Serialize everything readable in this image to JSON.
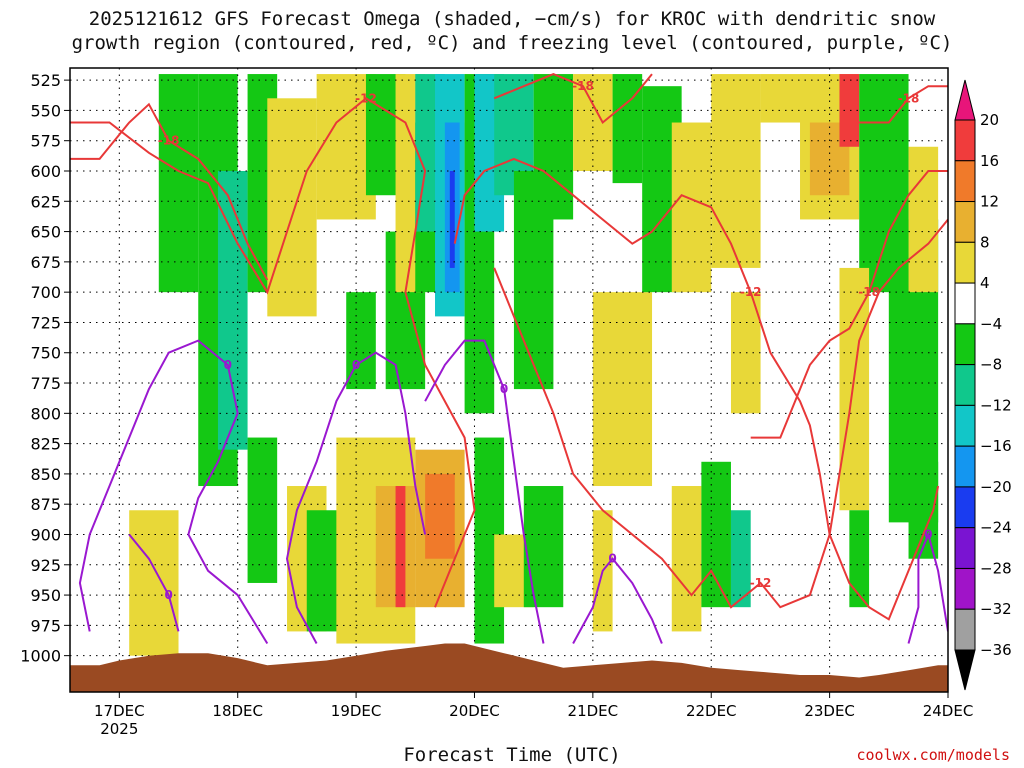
{
  "title_line1": "2025121612 GFS Forecast Omega (shaded, −cm/s) for KROC with dendritic snow",
  "title_line2": "growth region (contoured, red, ºC) and freezing level (contoured, purple, ºC)",
  "xlabel": "Forecast Time (UTC)",
  "credit": "coolwx.com/models",
  "chart_data": {
    "type": "heatmap",
    "title": "2025121612 GFS Forecast Omega (shaded, −cm/s) for KROC with dendritic snow growth region (contoured, red, ºC) and freezing level (contoured, purple, ºC)",
    "xlabel": "Forecast Time (UTC)",
    "ylabel": "",
    "y_axis": {
      "scale": "pressure",
      "ticks": [
        525,
        550,
        575,
        600,
        625,
        650,
        675,
        700,
        725,
        750,
        775,
        800,
        825,
        850,
        875,
        900,
        925,
        950,
        975,
        1000
      ],
      "range": [
        515,
        1030
      ]
    },
    "x_axis": {
      "ticks": [
        "17DEC\n2025",
        "18DEC",
        "19DEC",
        "20DEC",
        "21DEC",
        "22DEC",
        "23DEC",
        "24DEC"
      ],
      "range_hours": [
        -10,
        168
      ]
    },
    "colorbar": {
      "labels": [
        "20",
        "16",
        "12",
        "8",
        "4",
        "−4",
        "−8",
        "−12",
        "−16",
        "−20",
        "−24",
        "−28",
        "−32",
        "−36"
      ],
      "colors": [
        "#e8157a",
        "#f03c3c",
        "#f07a2a",
        "#e8b030",
        "#e8d838",
        "#ffffff",
        "#14c814",
        "#10c88c",
        "#12c6c8",
        "#1496f0",
        "#1a3cf0",
        "#7a14d2",
        "#a014c8",
        "#a0a0a0",
        "#000000"
      ]
    },
    "omega_cells": [
      {
        "x0": 8,
        "x1": 16,
        "p0": 520,
        "p1": 700,
        "v": -8
      },
      {
        "x0": 16,
        "x1": 24,
        "p0": 520,
        "p1": 860,
        "v": -8
      },
      {
        "x0": 20,
        "x1": 26,
        "p0": 600,
        "p1": 830,
        "v": -12
      },
      {
        "x0": 26,
        "x1": 32,
        "p0": 520,
        "p1": 700,
        "v": -8
      },
      {
        "x0": 30,
        "x1": 40,
        "p0": 540,
        "p1": 720,
        "v": 4
      },
      {
        "x0": 40,
        "x1": 52,
        "p0": 520,
        "p1": 640,
        "v": 4
      },
      {
        "x0": 50,
        "x1": 58,
        "p0": 520,
        "p1": 620,
        "v": -8
      },
      {
        "x0": 46,
        "x1": 52,
        "p0": 700,
        "p1": 780,
        "v": -8
      },
      {
        "x0": 54,
        "x1": 62,
        "p0": 650,
        "p1": 780,
        "v": -8
      },
      {
        "x0": 56,
        "x1": 62,
        "p0": 520,
        "p1": 700,
        "v": 4
      },
      {
        "x0": 60,
        "x1": 70,
        "p0": 560,
        "p1": 700,
        "v": -8
      },
      {
        "x0": 60,
        "x1": 66,
        "p0": 520,
        "p1": 650,
        "v": -12
      },
      {
        "x0": 64,
        "x1": 70,
        "p0": 520,
        "p1": 720,
        "v": -16
      },
      {
        "x0": 66,
        "x1": 69,
        "p0": 560,
        "p1": 700,
        "v": -20
      },
      {
        "x0": 67,
        "x1": 68,
        "p0": 600,
        "p1": 680,
        "v": -24
      },
      {
        "x0": 70,
        "x1": 76,
        "p0": 520,
        "p1": 800,
        "v": -8
      },
      {
        "x0": 72,
        "x1": 78,
        "p0": 520,
        "p1": 650,
        "v": -16
      },
      {
        "x0": 76,
        "x1": 84,
        "p0": 520,
        "p1": 620,
        "v": -12
      },
      {
        "x0": 80,
        "x1": 88,
        "p0": 600,
        "p1": 780,
        "v": -8
      },
      {
        "x0": 84,
        "x1": 92,
        "p0": 520,
        "p1": 640,
        "v": -8
      },
      {
        "x0": 92,
        "x1": 100,
        "p0": 520,
        "p1": 600,
        "v": 4
      },
      {
        "x0": 96,
        "x1": 108,
        "p0": 700,
        "p1": 860,
        "v": 4
      },
      {
        "x0": 100,
        "x1": 106,
        "p0": 520,
        "p1": 610,
        "v": -8
      },
      {
        "x0": 106,
        "x1": 114,
        "p0": 530,
        "p1": 700,
        "v": -8
      },
      {
        "x0": 112,
        "x1": 120,
        "p0": 560,
        "p1": 700,
        "v": 4
      },
      {
        "x0": 120,
        "x1": 130,
        "p0": 520,
        "p1": 680,
        "v": 4
      },
      {
        "x0": 124,
        "x1": 130,
        "p0": 700,
        "p1": 800,
        "v": 4
      },
      {
        "x0": 130,
        "x1": 140,
        "p0": 520,
        "p1": 560,
        "v": 4
      },
      {
        "x0": 138,
        "x1": 150,
        "p0": 520,
        "p1": 640,
        "v": 4
      },
      {
        "x0": 140,
        "x1": 148,
        "p0": 560,
        "p1": 620,
        "v": 8
      },
      {
        "x0": 146,
        "x1": 150,
        "p0": 520,
        "p1": 580,
        "v": 16
      },
      {
        "x0": 150,
        "x1": 160,
        "p0": 520,
        "p1": 700,
        "v": -8
      },
      {
        "x0": 146,
        "x1": 152,
        "p0": 680,
        "p1": 880,
        "v": 4
      },
      {
        "x0": 156,
        "x1": 166,
        "p0": 640,
        "p1": 890,
        "v": -8
      },
      {
        "x0": 160,
        "x1": 166,
        "p0": 580,
        "p1": 700,
        "v": 4
      },
      {
        "x0": 2,
        "x1": 12,
        "p0": 880,
        "p1": 1000,
        "v": 4
      },
      {
        "x0": 26,
        "x1": 32,
        "p0": 820,
        "p1": 940,
        "v": -8
      },
      {
        "x0": 34,
        "x1": 42,
        "p0": 860,
        "p1": 980,
        "v": 4
      },
      {
        "x0": 38,
        "x1": 46,
        "p0": 880,
        "p1": 980,
        "v": -8
      },
      {
        "x0": 44,
        "x1": 60,
        "p0": 820,
        "p1": 990,
        "v": 4
      },
      {
        "x0": 52,
        "x1": 60,
        "p0": 860,
        "p1": 960,
        "v": 8
      },
      {
        "x0": 56,
        "x1": 58,
        "p0": 860,
        "p1": 960,
        "v": 16
      },
      {
        "x0": 60,
        "x1": 70,
        "p0": 830,
        "p1": 960,
        "v": 8
      },
      {
        "x0": 62,
        "x1": 68,
        "p0": 850,
        "p1": 920,
        "v": 12
      },
      {
        "x0": 72,
        "x1": 78,
        "p0": 820,
        "p1": 990,
        "v": -8
      },
      {
        "x0": 76,
        "x1": 84,
        "p0": 900,
        "p1": 960,
        "v": 4
      },
      {
        "x0": 82,
        "x1": 90,
        "p0": 860,
        "p1": 960,
        "v": -8
      },
      {
        "x0": 96,
        "x1": 100,
        "p0": 880,
        "p1": 980,
        "v": 4
      },
      {
        "x0": 112,
        "x1": 118,
        "p0": 860,
        "p1": 980,
        "v": 4
      },
      {
        "x0": 118,
        "x1": 124,
        "p0": 840,
        "p1": 960,
        "v": -8
      },
      {
        "x0": 124,
        "x1": 128,
        "p0": 880,
        "p1": 960,
        "v": -12
      },
      {
        "x0": 148,
        "x1": 152,
        "p0": 880,
        "p1": 960,
        "v": -8
      },
      {
        "x0": 160,
        "x1": 166,
        "p0": 840,
        "p1": 920,
        "v": -8
      }
    ],
    "dgz_contours": [
      {
        "label": "-12",
        "points": [
          [
            -10,
            560
          ],
          [
            -2,
            560
          ],
          [
            6,
            585
          ],
          [
            12,
            600
          ],
          [
            18,
            610
          ],
          [
            24,
            660
          ],
          [
            30,
            700
          ],
          [
            34,
            650
          ],
          [
            38,
            600
          ],
          [
            44,
            560
          ],
          [
            50,
            540
          ],
          [
            58,
            560
          ],
          [
            62,
            600
          ],
          [
            60,
            650
          ],
          [
            58,
            700
          ],
          [
            62,
            760
          ],
          [
            70,
            820
          ],
          [
            72,
            880
          ],
          [
            68,
            920
          ],
          [
            64,
            960
          ]
        ]
      },
      {
        "label": "-18",
        "points": [
          [
            -10,
            590
          ],
          [
            -4,
            590
          ],
          [
            2,
            560
          ],
          [
            6,
            545
          ],
          [
            10,
            575
          ],
          [
            16,
            590
          ],
          [
            22,
            620
          ],
          [
            26,
            660
          ],
          [
            30,
            690
          ]
        ]
      },
      {
        "label": "-12",
        "points": [
          [
            68,
            660
          ],
          [
            70,
            620
          ],
          [
            74,
            600
          ],
          [
            80,
            590
          ],
          [
            86,
            600
          ],
          [
            92,
            620
          ],
          [
            98,
            640
          ],
          [
            104,
            660
          ],
          [
            108,
            650
          ],
          [
            114,
            620
          ],
          [
            120,
            630
          ],
          [
            124,
            660
          ],
          [
            128,
            700
          ],
          [
            132,
            750
          ],
          [
            138,
            790
          ],
          [
            140,
            810
          ],
          [
            142,
            850
          ],
          [
            144,
            900
          ],
          [
            148,
            940
          ],
          [
            152,
            960
          ],
          [
            156,
            970
          ],
          [
            160,
            930
          ],
          [
            163,
            900
          ],
          [
            165,
            880
          ],
          [
            166,
            860
          ]
        ]
      },
      {
        "label": "-18",
        "points": [
          [
            76,
            540
          ],
          [
            82,
            530
          ],
          [
            88,
            520
          ],
          [
            94,
            530
          ],
          [
            98,
            560
          ],
          [
            104,
            540
          ],
          [
            108,
            520
          ]
        ]
      },
      {
        "label": "-12",
        "points": [
          [
            76,
            680
          ],
          [
            80,
            720
          ],
          [
            84,
            760
          ],
          [
            88,
            800
          ],
          [
            92,
            850
          ],
          [
            98,
            880
          ],
          [
            104,
            900
          ],
          [
            110,
            920
          ],
          [
            116,
            950
          ],
          [
            120,
            930
          ],
          [
            124,
            960
          ],
          [
            130,
            940
          ],
          [
            134,
            960
          ],
          [
            140,
            950
          ],
          [
            144,
            900
          ],
          [
            146,
            850
          ],
          [
            148,
            800
          ],
          [
            150,
            740
          ],
          [
            154,
            700
          ],
          [
            158,
            680
          ],
          [
            164,
            660
          ],
          [
            168,
            640
          ]
        ]
      },
      {
        "label": "-18",
        "points": [
          [
            128,
            820
          ],
          [
            134,
            820
          ],
          [
            140,
            760
          ],
          [
            144,
            740
          ],
          [
            148,
            730
          ],
          [
            152,
            700
          ],
          [
            156,
            650
          ],
          [
            160,
            620
          ],
          [
            164,
            600
          ],
          [
            168,
            600
          ]
        ]
      },
      {
        "label": "-18",
        "points": [
          [
            150,
            560
          ],
          [
            156,
            560
          ],
          [
            160,
            540
          ],
          [
            164,
            530
          ],
          [
            168,
            530
          ]
        ]
      }
    ],
    "freezing_contours": [
      {
        "label": "0",
        "points": [
          [
            -6,
            980
          ],
          [
            -8,
            940
          ],
          [
            -6,
            900
          ],
          [
            -2,
            860
          ],
          [
            2,
            820
          ],
          [
            6,
            780
          ],
          [
            10,
            750
          ],
          [
            16,
            740
          ],
          [
            22,
            760
          ],
          [
            24,
            800
          ],
          [
            20,
            840
          ],
          [
            16,
            870
          ],
          [
            14,
            900
          ],
          [
            18,
            930
          ],
          [
            24,
            950
          ],
          [
            30,
            990
          ]
        ]
      },
      {
        "label": "0",
        "points": [
          [
            2,
            900
          ],
          [
            6,
            920
          ],
          [
            10,
            950
          ],
          [
            12,
            980
          ]
        ]
      },
      {
        "label": "0",
        "points": [
          [
            40,
            990
          ],
          [
            36,
            960
          ],
          [
            34,
            920
          ],
          [
            36,
            880
          ],
          [
            40,
            840
          ],
          [
            44,
            790
          ],
          [
            48,
            760
          ],
          [
            52,
            750
          ],
          [
            56,
            760
          ],
          [
            58,
            800
          ],
          [
            60,
            860
          ],
          [
            62,
            900
          ]
        ]
      },
      {
        "label": "0",
        "points": [
          [
            62,
            790
          ],
          [
            66,
            760
          ],
          [
            70,
            740
          ],
          [
            74,
            740
          ],
          [
            78,
            780
          ],
          [
            80,
            840
          ],
          [
            82,
            900
          ],
          [
            84,
            950
          ],
          [
            86,
            990
          ]
        ]
      },
      {
        "label": "0",
        "points": [
          [
            92,
            990
          ],
          [
            96,
            960
          ],
          [
            98,
            930
          ],
          [
            100,
            920
          ],
          [
            104,
            940
          ],
          [
            108,
            970
          ],
          [
            110,
            990
          ]
        ]
      },
      {
        "label": "0",
        "points": [
          [
            160,
            990
          ],
          [
            162,
            960
          ],
          [
            162,
            920
          ],
          [
            164,
            900
          ],
          [
            166,
            930
          ],
          [
            168,
            980
          ]
        ]
      }
    ],
    "terrain_pressure": [
      [
        -10,
        1008
      ],
      [
        -4,
        1008
      ],
      [
        0,
        1004
      ],
      [
        6,
        1000
      ],
      [
        12,
        998
      ],
      [
        18,
        998
      ],
      [
        24,
        1002
      ],
      [
        30,
        1008
      ],
      [
        36,
        1006
      ],
      [
        42,
        1004
      ],
      [
        48,
        1000
      ],
      [
        54,
        996
      ],
      [
        58,
        994
      ],
      [
        62,
        992
      ],
      [
        66,
        990
      ],
      [
        70,
        990
      ],
      [
        74,
        994
      ],
      [
        78,
        998
      ],
      [
        84,
        1004
      ],
      [
        90,
        1010
      ],
      [
        96,
        1008
      ],
      [
        102,
        1006
      ],
      [
        108,
        1004
      ],
      [
        114,
        1006
      ],
      [
        120,
        1010
      ],
      [
        126,
        1012
      ],
      [
        132,
        1014
      ],
      [
        138,
        1016
      ],
      [
        144,
        1016
      ],
      [
        150,
        1018
      ],
      [
        154,
        1016
      ],
      [
        160,
        1012
      ],
      [
        166,
        1008
      ],
      [
        168,
        1008
      ]
    ],
    "grid": true
  }
}
